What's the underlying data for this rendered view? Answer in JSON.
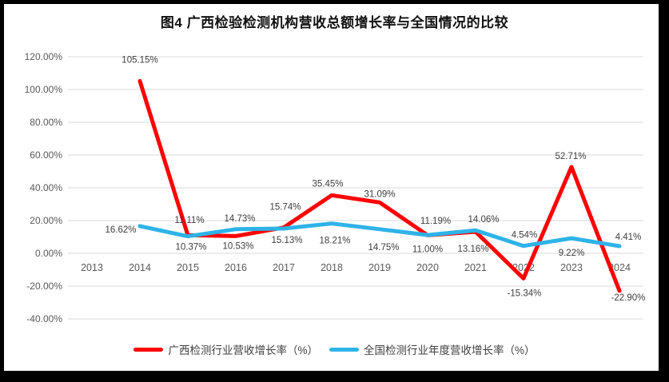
{
  "title": "图4 广西检验检测机构营收总额增长率与全国情况的比较",
  "colors": {
    "frame": "#000000",
    "plot_background": "#FFFFFF",
    "gridline": "#D9D9D9",
    "axis_text": "#595959",
    "data_label_text": "#3D3D3D",
    "title_text": "#111111",
    "guangxi_series": "#FF0000",
    "national_series": "#2EB3E8"
  },
  "chart_data": {
    "type": "line",
    "title": "图4 广西检验检测机构营收总额增长率与全国情况的比较",
    "categories": [
      "2013",
      "2014",
      "2015",
      "2016",
      "2017",
      "2018",
      "2019",
      "2020",
      "2021",
      "2022",
      "2023",
      "2024"
    ],
    "series": [
      {
        "name": "广西检测行业营收增长率（%）",
        "color": "#FF0000",
        "values": [
          null,
          105.15,
          11.11,
          10.53,
          15.74,
          35.45,
          31.09,
          11.0,
          13.16,
          -15.34,
          52.71,
          -22.9
        ],
        "data_labels": [
          "",
          "105.15%",
          "11.11%",
          "10.53%",
          "15.74%",
          "35.45%",
          "31.09%",
          "11.00%",
          "13.16%",
          "-15.34%",
          "52.71%",
          "-22.90%"
        ],
        "label_offsets": [
          [
            0,
            0
          ],
          [
            0,
            -27
          ],
          [
            2,
            -19
          ],
          [
            3,
            12
          ],
          [
            2,
            -26
          ],
          [
            -5,
            -15
          ],
          [
            0,
            -11
          ],
          [
            0,
            17
          ],
          [
            -3,
            21
          ],
          [
            1,
            18
          ],
          [
            -1,
            -14
          ],
          [
            11,
            8
          ]
        ]
      },
      {
        "name": "全国检测行业年度营收增长率（%）",
        "color": "#2EB3E8",
        "values": [
          null,
          16.62,
          10.37,
          14.73,
          15.13,
          18.21,
          14.75,
          11.19,
          14.06,
          4.54,
          9.22,
          4.41
        ],
        "data_labels": [
          "",
          "16.62%",
          "10.37%",
          "14.73%",
          "15.13%",
          "18.21%",
          "14.75%",
          "11.19%",
          "14.06%",
          "4.54%",
          "9.22%",
          "4.41%"
        ],
        "label_offsets": [
          [
            0,
            0
          ],
          [
            -24,
            4
          ],
          [
            4,
            13
          ],
          [
            5,
            -14
          ],
          [
            4,
            14
          ],
          [
            4,
            21
          ],
          [
            5,
            22
          ],
          [
            10,
            -18
          ],
          [
            10,
            -14
          ],
          [
            1,
            -14
          ],
          [
            0,
            18
          ],
          [
            11,
            -12
          ]
        ]
      }
    ],
    "ylim": [
      -40,
      120
    ],
    "ytick_step": 20,
    "ytick_labels": [
      "120.00%",
      "100.00%",
      "80.00%",
      "60.00%",
      "40.00%",
      "20.00%",
      "0.00%",
      "-20.00%",
      "-40.00%"
    ],
    "grid": true,
    "legend_position": "bottom"
  }
}
